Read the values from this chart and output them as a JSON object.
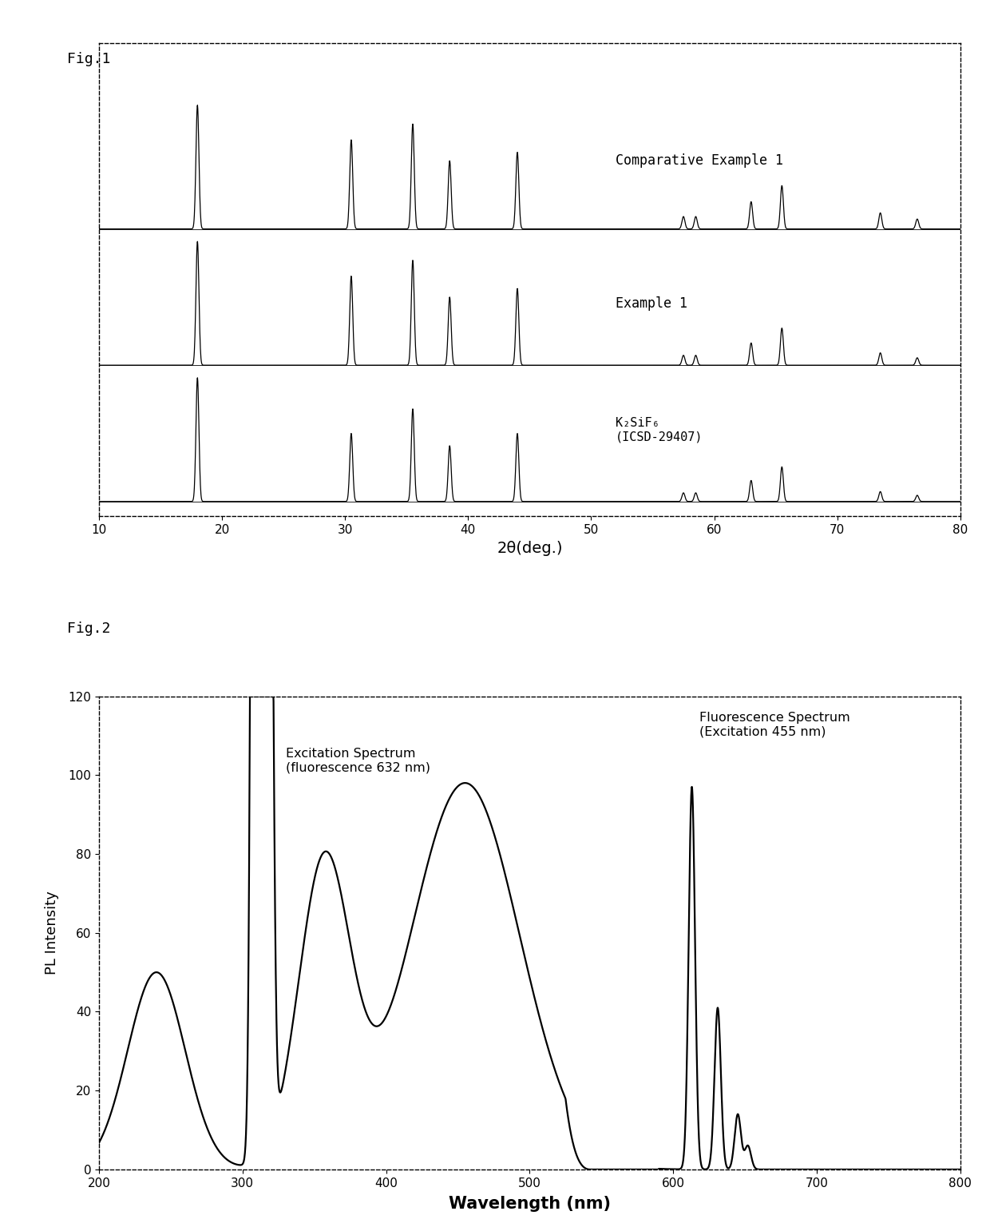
{
  "fig1_label": "Fig.1",
  "fig2_label": "Fig.2",
  "xrd_xlim": [
    10,
    80
  ],
  "xrd_xlabel": "2θ(deg.)",
  "xrd_xticks": [
    10,
    20,
    30,
    40,
    50,
    60,
    70,
    80
  ],
  "comp_example1_label": "Comparative Example 1",
  "example1_label": "Example 1",
  "k2sif6_label": "K₂SiF₆\n(ICSD-29407)",
  "pl_xlim": [
    200,
    800
  ],
  "pl_ylim": [
    0,
    120
  ],
  "pl_xlabel": "Wavelength (nm)",
  "pl_ylabel": "PL Intensity",
  "pl_xticks": [
    200,
    300,
    400,
    500,
    600,
    700,
    800
  ],
  "pl_yticks": [
    0,
    20,
    40,
    60,
    80,
    100,
    120
  ],
  "excitation_label": "Excitation Spectrum\n(fluorescence 632 nm)",
  "fluorescence_label": "Fluorescence Spectrum\n(Excitation 455 nm)",
  "line_color": "#000000",
  "background_color": "#ffffff",
  "xrd_peak_positions_comp": [
    18.0,
    30.5,
    35.5,
    38.5,
    44.0,
    57.5,
    58.5,
    63.0,
    65.5,
    73.5,
    76.5
  ],
  "xrd_peak_heights_comp": [
    1.0,
    0.72,
    0.85,
    0.55,
    0.62,
    0.1,
    0.1,
    0.22,
    0.35,
    0.13,
    0.08
  ],
  "xrd_peak_positions_ex1": [
    18.0,
    30.5,
    35.5,
    38.5,
    44.0,
    57.5,
    58.5,
    63.0,
    65.5,
    73.5,
    76.5
  ],
  "xrd_peak_heights_ex1": [
    1.0,
    0.72,
    0.85,
    0.55,
    0.62,
    0.08,
    0.08,
    0.18,
    0.3,
    0.1,
    0.06
  ],
  "xrd_peak_positions_ref": [
    18.0,
    30.5,
    35.5,
    38.5,
    44.0,
    57.5,
    58.5,
    63.0,
    65.5,
    73.5,
    76.5
  ],
  "xrd_peak_heights_ref": [
    1.0,
    0.55,
    0.75,
    0.45,
    0.55,
    0.07,
    0.07,
    0.17,
    0.28,
    0.08,
    0.05
  ]
}
